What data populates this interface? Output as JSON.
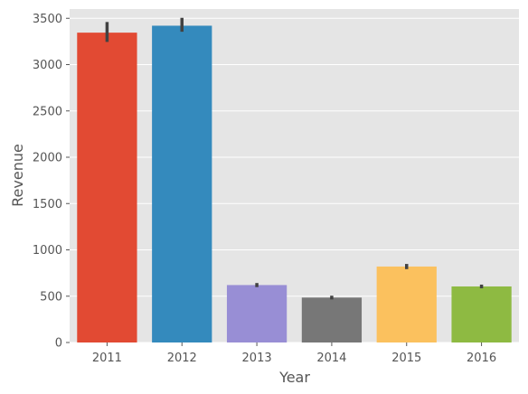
{
  "chart_data": {
    "type": "bar",
    "title": "",
    "xlabel": "Year",
    "ylabel": "Revenue",
    "categories": [
      "2011",
      "2012",
      "2013",
      "2014",
      "2015",
      "2016"
    ],
    "values": [
      3345,
      3420,
      620,
      485,
      820,
      605
    ],
    "error_bars": [
      [
        3245,
        3460
      ],
      [
        3355,
        3505
      ],
      [
        598,
        642
      ],
      [
        465,
        505
      ],
      [
        792,
        848
      ],
      [
        585,
        625
      ]
    ],
    "colors": [
      "#e24a33",
      "#348abd",
      "#988ed5",
      "#777777",
      "#fbc15e",
      "#8eba42"
    ],
    "ylim": [
      0,
      3600
    ],
    "yticks": [
      0,
      500,
      1000,
      1500,
      2000,
      2500,
      3000,
      3500
    ],
    "ytick_labels": [
      "0",
      "500",
      "1000",
      "1500",
      "2000",
      "2500",
      "3000",
      "3500"
    ],
    "grid": true,
    "legend": "none",
    "background": "#e5e5e5",
    "grid_color": "#ffffff",
    "errorbar_color": "#424242"
  }
}
